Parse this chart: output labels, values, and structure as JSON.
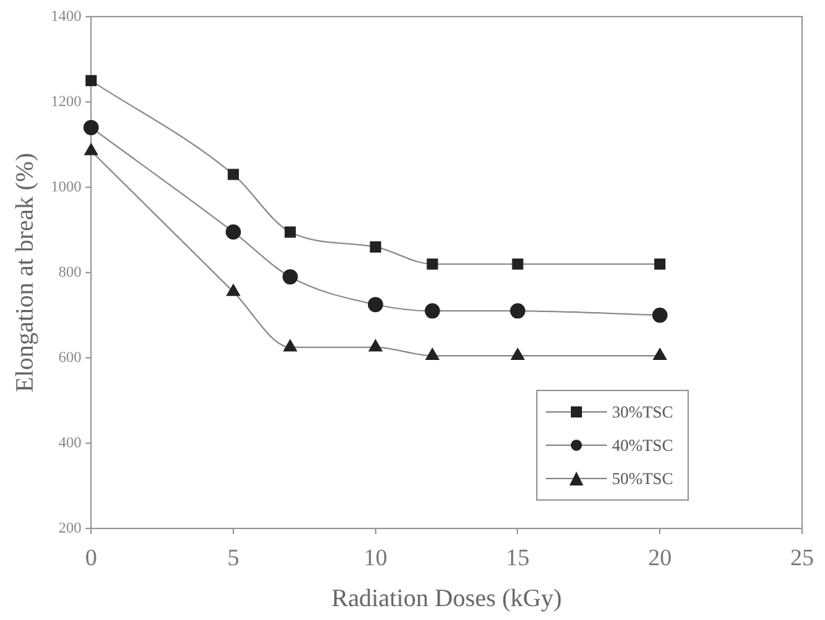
{
  "chart_data": {
    "type": "line",
    "xlabel": "Radiation Doses (kGy)",
    "ylabel": "Elongation at break (%)",
    "x": [
      0,
      5,
      7,
      10,
      12,
      15,
      20
    ],
    "series": [
      {
        "name": "30%TSC",
        "color": "#222222",
        "marker": "square",
        "values": [
          1250,
          1030,
          895,
          860,
          820,
          820,
          820
        ]
      },
      {
        "name": "40%TSC",
        "color": "#222222",
        "marker": "circle",
        "values": [
          1140,
          895,
          790,
          725,
          710,
          710,
          700
        ]
      },
      {
        "name": "50%TSC",
        "color": "#222222",
        "marker": "triangle",
        "values": [
          1085,
          755,
          625,
          625,
          605,
          605,
          605
        ]
      }
    ],
    "xlim": [
      0,
      25
    ],
    "xticks": [
      0,
      5,
      10,
      15,
      20,
      25
    ],
    "ylim": [
      200,
      1400
    ],
    "yticks": [
      200,
      400,
      600,
      800,
      1000,
      1200,
      1400
    ],
    "grid": false,
    "legend": "bottom right"
  }
}
